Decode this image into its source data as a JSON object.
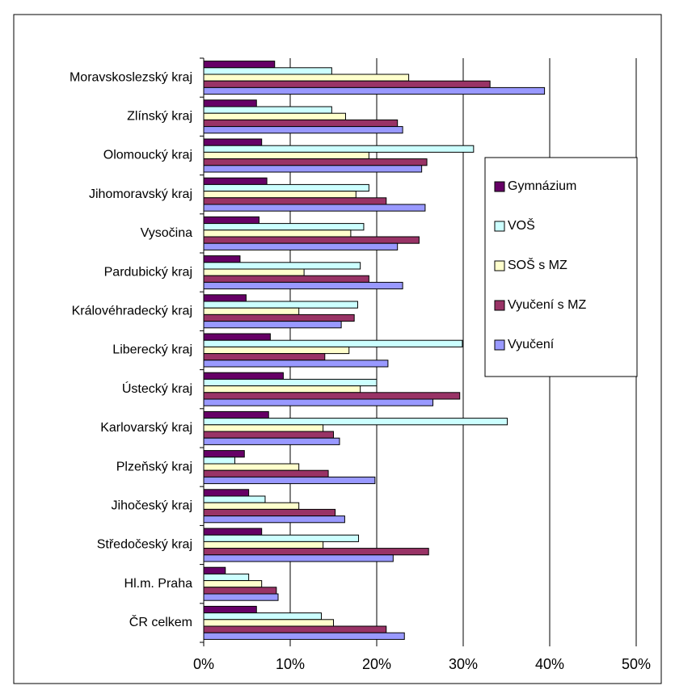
{
  "chart_data": {
    "type": "bar",
    "orientation": "horizontal",
    "categories": [
      "Moravskoslezský kraj",
      "Zlínský kraj",
      "Olomoucký kraj",
      "Jihomoravský kraj",
      "Vysočina",
      "Pardubický kraj",
      "Královéhradecký kraj",
      "Liberecký kraj",
      "Ústecký kraj",
      "Karlovarský kraj",
      "Plzeňský kraj",
      "Jihočeský kraj",
      "Středočeský kraj",
      "Hl.m. Praha",
      "ČR celkem"
    ],
    "series": [
      {
        "name": "Gymnázium",
        "color": "#660066",
        "values": [
          8.2,
          6.1,
          6.7,
          7.3,
          6.4,
          4.2,
          4.9,
          7.7,
          9.2,
          7.5,
          4.7,
          5.2,
          6.7,
          2.5,
          6.1
        ]
      },
      {
        "name": "VOŠ",
        "color": "#ccffff",
        "values": [
          14.8,
          14.8,
          31.2,
          19.1,
          18.5,
          18.1,
          17.8,
          29.9,
          20.0,
          35.1,
          3.6,
          7.1,
          17.9,
          5.2,
          13.6
        ]
      },
      {
        "name": "SOŠ s MZ",
        "color": "#ffffcc",
        "values": [
          23.7,
          16.4,
          19.1,
          17.6,
          17.0,
          11.6,
          11.0,
          16.8,
          18.1,
          13.8,
          11.0,
          11.0,
          13.8,
          6.7,
          15.0
        ]
      },
      {
        "name": "Vyučení s MZ",
        "color": "#993366",
        "values": [
          33.1,
          22.4,
          25.8,
          21.1,
          24.9,
          19.1,
          17.4,
          14.0,
          29.6,
          15.0,
          14.4,
          15.2,
          26.0,
          8.4,
          21.1
        ]
      },
      {
        "name": "Vyučení",
        "color": "#9999ff",
        "values": [
          39.4,
          23.0,
          25.2,
          25.6,
          22.4,
          23.0,
          15.9,
          21.3,
          26.5,
          15.7,
          19.8,
          16.3,
          21.9,
          8.6,
          23.2
        ]
      }
    ],
    "xlim": [
      0,
      50
    ],
    "xticks": [
      {
        "value": 0,
        "label": "0%"
      },
      {
        "value": 10,
        "label": "10%"
      },
      {
        "value": 20,
        "label": "20%"
      },
      {
        "value": 30,
        "label": "30%"
      },
      {
        "value": 40,
        "label": "40%"
      },
      {
        "value": 50,
        "label": "50%"
      }
    ],
    "grid": true,
    "legend": "right"
  }
}
